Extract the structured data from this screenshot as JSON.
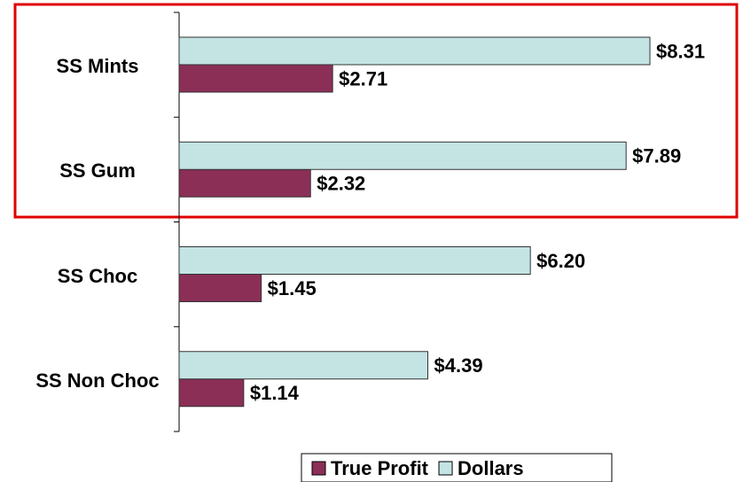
{
  "chart_data": {
    "type": "hbar",
    "categories": [
      "SS Mints",
      "SS Gum",
      "SS Choc",
      "SS Non Choc"
    ],
    "series": [
      {
        "name": "True Profit",
        "color": "#8b2f57",
        "values": [
          2.71,
          2.32,
          1.45,
          1.14
        ],
        "value_labels": [
          "$2.71",
          "$2.32",
          "$1.45",
          "$1.14"
        ]
      },
      {
        "name": "Dollars",
        "color": "#c4e4e4",
        "values": [
          8.31,
          7.89,
          6.2,
          4.39
        ],
        "value_labels": [
          "$8.31",
          "$7.89",
          "$6.20",
          "$4.39"
        ]
      }
    ],
    "legend": "bottom"
  }
}
